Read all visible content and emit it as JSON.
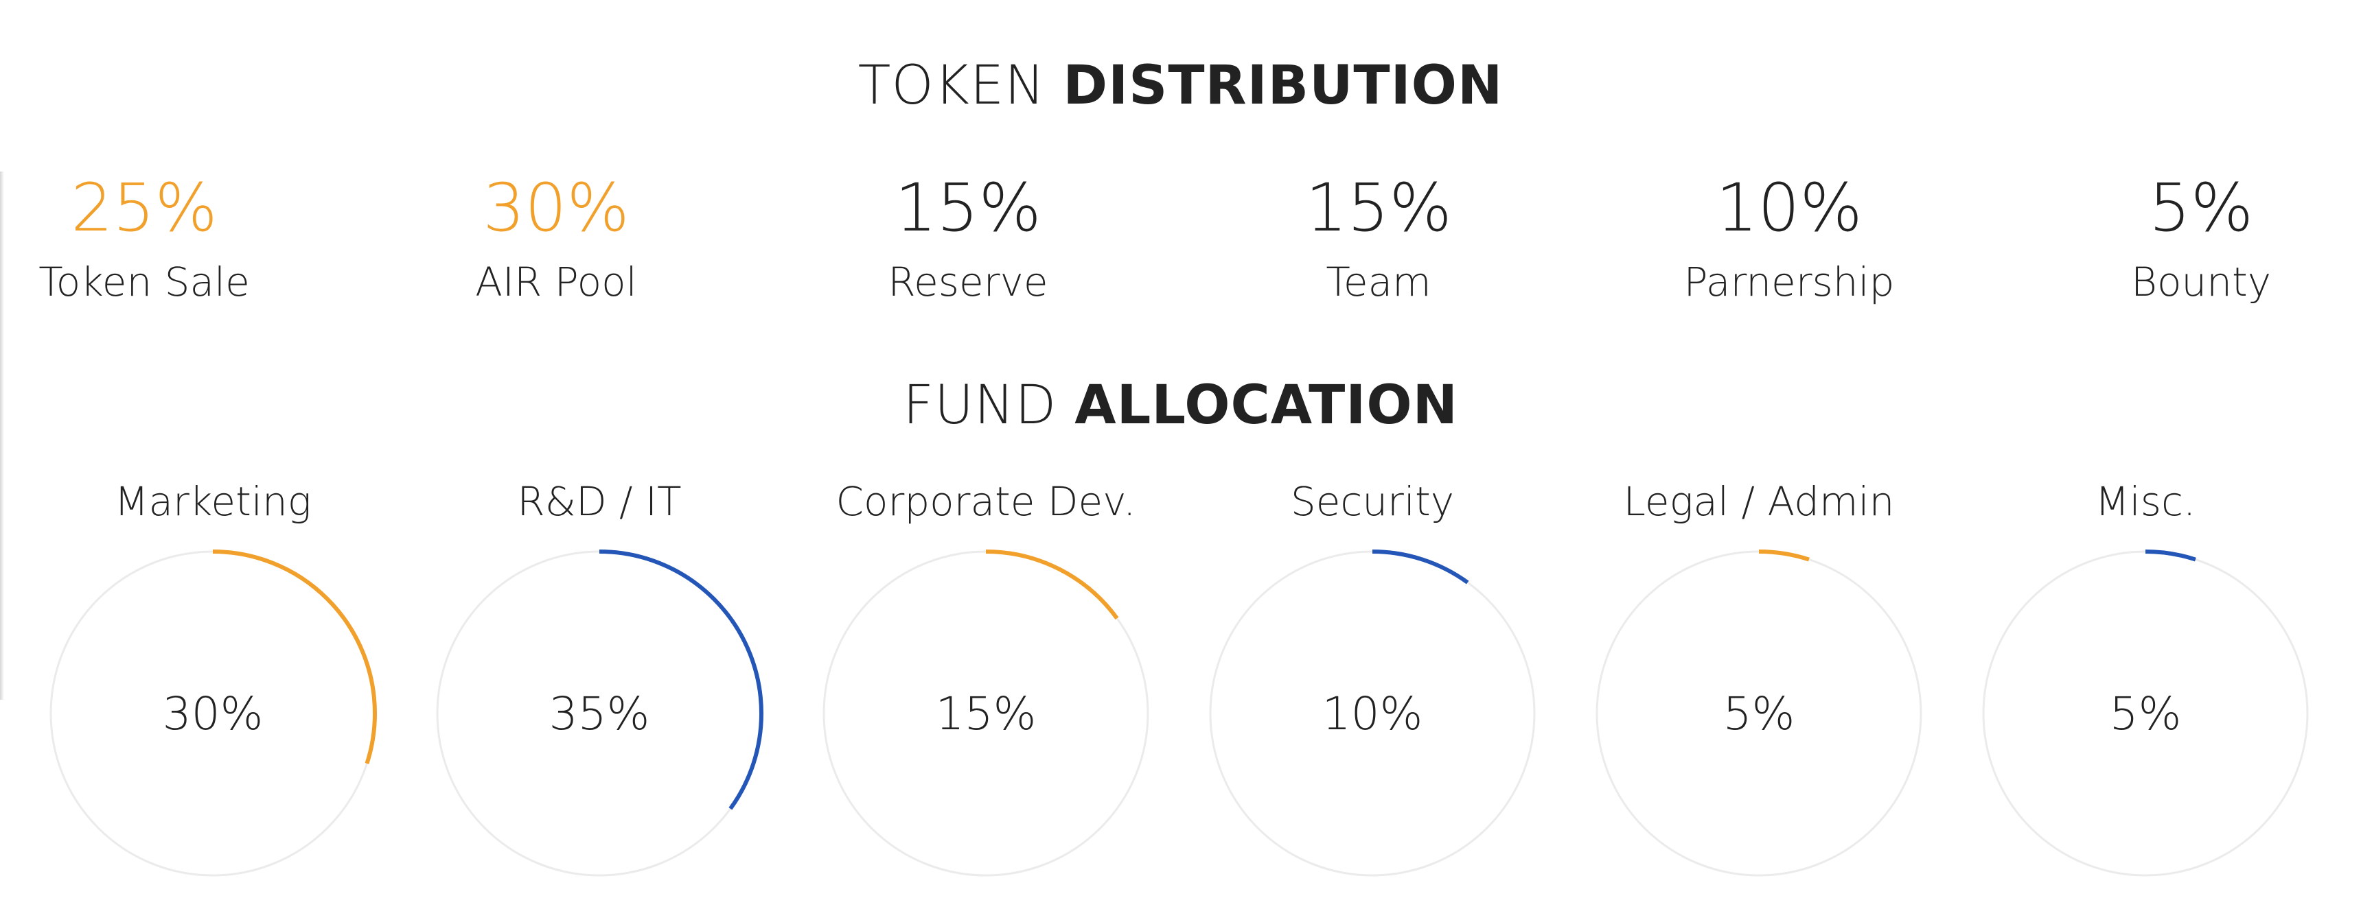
{
  "token_distribution": {
    "title_light": "TOKEN",
    "title_bold": "DISTRIBUTION",
    "items": [
      {
        "percent": "25%",
        "label": "Token Sale",
        "highlight": true
      },
      {
        "percent": "30%",
        "label": "AIR Pool",
        "highlight": true
      },
      {
        "percent": "15%",
        "label": "Reserve",
        "highlight": false
      },
      {
        "percent": "15%",
        "label": "Team",
        "highlight": false
      },
      {
        "percent": "10%",
        "label": "Parnership",
        "highlight": false
      },
      {
        "percent": "5%",
        "label": "Bounty",
        "highlight": false
      }
    ]
  },
  "fund_allocation": {
    "title_light": "FUND",
    "title_bold": "ALLOCATION",
    "items": [
      {
        "label": "Marketing",
        "percent": "30%",
        "value": 30,
        "color": "#F0A02B"
      },
      {
        "label": "R&D / IT",
        "percent": "35%",
        "value": 35,
        "color": "#2456B8"
      },
      {
        "label": "Corporate Dev.",
        "percent": "15%",
        "value": 15,
        "color": "#F0A02B"
      },
      {
        "label": "Security",
        "percent": "10%",
        "value": 10,
        "color": "#2456B8"
      },
      {
        "label": "Legal / Admin",
        "percent": "5%",
        "value": 5,
        "color": "#F0A02B"
      },
      {
        "label": "Misc.",
        "percent": "5%",
        "value": 5,
        "color": "#2456B8"
      }
    ]
  },
  "colors": {
    "accent_orange": "#F0A02B",
    "accent_blue": "#2456B8",
    "ring_track": "#EBEBEB",
    "text": "#222222"
  }
}
